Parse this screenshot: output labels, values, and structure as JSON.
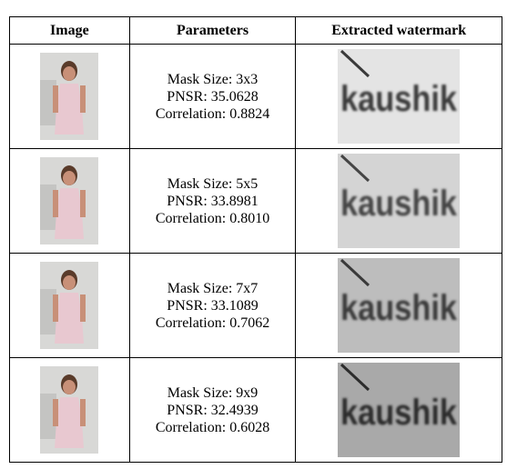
{
  "table": {
    "header": [
      "Image",
      "Parameters",
      "Extracted watermark"
    ],
    "rows": [
      {
        "parameters": [
          "Mask Size: 3x3",
          "PNSR: 35.0628",
          "Correlation: 0.8824"
        ],
        "watermark": "kaushik"
      },
      {
        "parameters": [
          "Mask Size: 5x5",
          "PNSR: 33.8981",
          "Correlation: 0.8010"
        ],
        "watermark": "kaushik"
      },
      {
        "parameters": [
          "Mask Size: 7x7",
          "PNSR: 33.1089",
          "Correlation: 0.7062"
        ],
        "watermark": "kaushik"
      },
      {
        "parameters": [
          "Mask Size: 9x9",
          "PNSR: 32.4939",
          "Correlation: 0.6028"
        ],
        "watermark": "kaushik"
      }
    ]
  }
}
